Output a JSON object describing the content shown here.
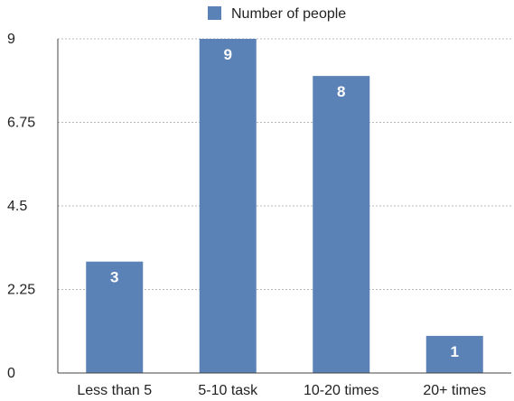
{
  "chart_data": {
    "type": "bar",
    "categories": [
      "Less than 5",
      "5-10 task",
      "10-20 times",
      "20+ times"
    ],
    "series": [
      {
        "name": "Number of people",
        "values": [
          3,
          9,
          8,
          1
        ]
      }
    ],
    "data_labels": [
      "3",
      "9",
      "8",
      "1"
    ],
    "y_ticks": [
      0,
      2.25,
      4.5,
      6.75,
      9
    ],
    "y_tick_labels": [
      "0",
      "2.25",
      "4.5",
      "6.75",
      "9"
    ],
    "ylim": [
      0,
      9
    ],
    "grid": true,
    "legend_position": "top-center",
    "bar_color": "#5b82b7",
    "title": "",
    "xlabel": "",
    "ylabel": ""
  }
}
